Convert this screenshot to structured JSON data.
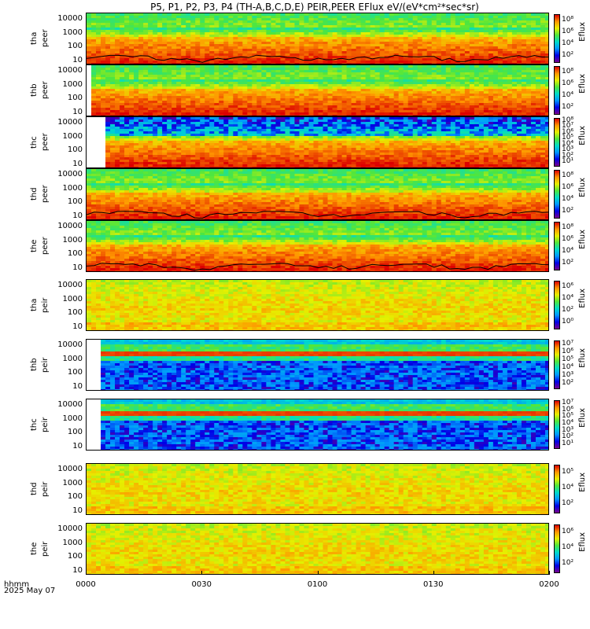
{
  "title": "P5, P1, P2, P3, P4 (TH-A,B,C,D,E) PEIR,PEER EFlux eV/(eV*cm²*sec*sr)",
  "x_axis": {
    "label_line1": "hhmm",
    "label_line2": "2025 May 07",
    "ticks": [
      "0000",
      "0030",
      "0100",
      "0130",
      "0200"
    ]
  },
  "colorbar_label": "Eflux",
  "chart_data": [
    {
      "type": "heatmap",
      "probe": "tha",
      "species": "peer",
      "ylabel_top": "tha",
      "ylabel_bottom": "peer",
      "yticks": [
        "10000",
        "1000",
        "100",
        "10"
      ],
      "ylim": [
        5,
        30000
      ],
      "log_y": true,
      "cbar_ticks": [
        "10⁸",
        "10⁶",
        "10⁴",
        "10²"
      ],
      "start_frac": 0.0,
      "scheme": "electron",
      "has_line": true
    },
    {
      "type": "heatmap",
      "probe": "thb",
      "species": "peer",
      "ylabel_top": "thb",
      "ylabel_bottom": "peer",
      "yticks": [
        "10000",
        "1000",
        "100",
        "10"
      ],
      "ylim": [
        5,
        30000
      ],
      "log_y": true,
      "cbar_ticks": [
        "10⁸",
        "10⁶",
        "10⁴",
        "10²"
      ],
      "start_frac": 0.01,
      "scheme": "electron",
      "has_line": false
    },
    {
      "type": "heatmap",
      "probe": "thc",
      "species": "peer",
      "ylabel_top": "thc",
      "ylabel_bottom": "peer",
      "yticks": [
        "10000",
        "1000",
        "100",
        "10"
      ],
      "ylim": [
        5,
        30000
      ],
      "log_y": true,
      "cbar_ticks": [
        "10⁸",
        "10⁷",
        "10⁶",
        "10⁵",
        "10⁴",
        "10³",
        "10²",
        "10¹"
      ],
      "start_frac": 0.04,
      "scheme": "electron_noisy",
      "has_line": false
    },
    {
      "type": "heatmap",
      "probe": "thd",
      "species": "peer",
      "ylabel_top": "thd",
      "ylabel_bottom": "peer",
      "yticks": [
        "10000",
        "1000",
        "100",
        "10"
      ],
      "ylim": [
        5,
        30000
      ],
      "log_y": true,
      "cbar_ticks": [
        "10⁸",
        "10⁶",
        "10⁴",
        "10²"
      ],
      "start_frac": 0.0,
      "scheme": "electron",
      "has_line": true
    },
    {
      "type": "heatmap",
      "probe": "the",
      "species": "peer",
      "ylabel_top": "the",
      "ylabel_bottom": "peer",
      "yticks": [
        "10000",
        "1000",
        "100",
        "10"
      ],
      "ylim": [
        5,
        30000
      ],
      "log_y": true,
      "cbar_ticks": [
        "10⁸",
        "10⁶",
        "10⁴",
        "10²"
      ],
      "start_frac": 0.0,
      "scheme": "electron",
      "has_line": true
    },
    {
      "type": "heatmap",
      "probe": "tha",
      "species": "peir",
      "ylabel_top": "tha",
      "ylabel_bottom": "peir",
      "yticks": [
        "10000",
        "1000",
        "100",
        "10"
      ],
      "ylim": [
        5,
        30000
      ],
      "log_y": true,
      "cbar_ticks": [
        "10⁶",
        "10⁴",
        "10²",
        "10⁰"
      ],
      "start_frac": 0.0,
      "scheme": "ion",
      "has_line": false
    },
    {
      "type": "heatmap",
      "probe": "thb",
      "species": "peir",
      "ylabel_top": "thb",
      "ylabel_bottom": "peir",
      "yticks": [
        "10000",
        "1000",
        "100",
        "10"
      ],
      "ylim": [
        5,
        30000
      ],
      "log_y": true,
      "cbar_ticks": [
        "10⁷",
        "10⁶",
        "10⁵",
        "10⁴",
        "10³",
        "10²"
      ],
      "start_frac": 0.03,
      "scheme": "ion_blue",
      "has_line": false
    },
    {
      "type": "heatmap",
      "probe": "thc",
      "species": "peir",
      "ylabel_top": "thc",
      "ylabel_bottom": "peir",
      "yticks": [
        "10000",
        "1000",
        "100",
        "10"
      ],
      "ylim": [
        5,
        30000
      ],
      "log_y": true,
      "cbar_ticks": [
        "10⁷",
        "10⁶",
        "10⁵",
        "10⁴",
        "10³",
        "10²",
        "10¹"
      ],
      "start_frac": 0.035,
      "scheme": "ion_blue",
      "has_line": false
    },
    {
      "type": "heatmap",
      "probe": "thd",
      "species": "peir",
      "ylabel_top": "thd",
      "ylabel_bottom": "peir",
      "yticks": [
        "10000",
        "1000",
        "100",
        "10"
      ],
      "ylim": [
        5,
        30000
      ],
      "log_y": true,
      "cbar_ticks": [
        "10⁵",
        "10⁴",
        "10²"
      ],
      "start_frac": 0.0,
      "scheme": "ion",
      "has_line": false
    },
    {
      "type": "heatmap",
      "probe": "the",
      "species": "peir",
      "ylabel_top": "the",
      "ylabel_bottom": "peir",
      "yticks": [
        "10000",
        "1000",
        "100",
        "10"
      ],
      "ylim": [
        5,
        30000
      ],
      "log_y": true,
      "cbar_ticks": [
        "10⁶",
        "10⁴",
        "10²"
      ],
      "start_frac": 0.0,
      "scheme": "ion",
      "has_line": false
    }
  ]
}
